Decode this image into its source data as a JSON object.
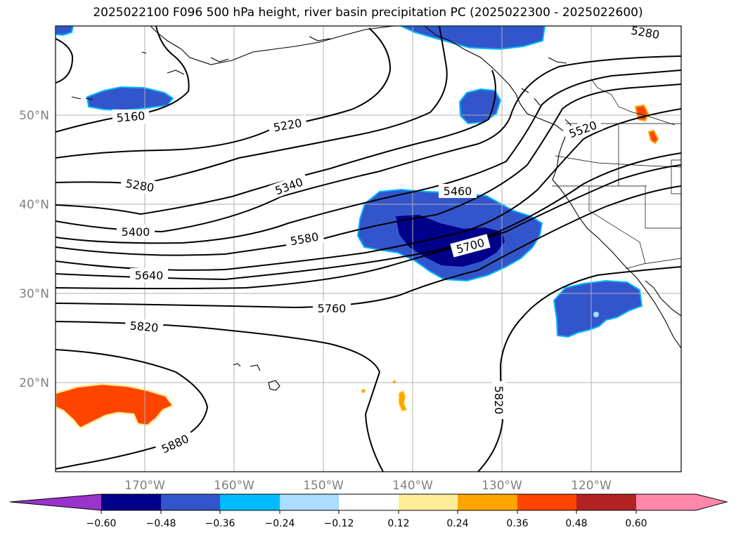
{
  "title": "2025022100 F096 500 hPa height, river basin precipitation PC (2025022300 - 2025022600)",
  "map": {
    "lon_range": [
      -180,
      -110
    ],
    "lat_range": [
      10,
      60
    ],
    "lon_ticks": [
      {
        "value": -170,
        "label": "170°W"
      },
      {
        "value": -160,
        "label": "160°W"
      },
      {
        "value": -150,
        "label": "150°W"
      },
      {
        "value": -140,
        "label": "140°W"
      },
      {
        "value": -130,
        "label": "130°W"
      },
      {
        "value": -120,
        "label": "120°W"
      }
    ],
    "lat_ticks": [
      {
        "value": 20,
        "label": "20°N"
      },
      {
        "value": 30,
        "label": "30°N"
      },
      {
        "value": 40,
        "label": "40°N"
      },
      {
        "value": 50,
        "label": "50°N"
      }
    ],
    "contour_labels": [
      "5160",
      "5220",
      "5280",
      "5280",
      "5340",
      "5400",
      "5460",
      "5520",
      "5580",
      "5640",
      "5700",
      "5760",
      "5820",
      "5820",
      "5880"
    ],
    "contour_color": "#000000",
    "grid": true
  },
  "colorbar": {
    "ticks": [
      "−0.60",
      "−0.48",
      "−0.36",
      "−0.24",
      "−0.12",
      "0.12",
      "0.24",
      "0.36",
      "0.48",
      "0.60"
    ],
    "colors": [
      "#9933cc",
      "#000088",
      "#3355cc",
      "#00bbff",
      "#aaddff",
      "#ffffff",
      "#ffee99",
      "#ffa500",
      "#ff4400",
      "#b22222",
      "#ff88aa"
    ]
  }
}
